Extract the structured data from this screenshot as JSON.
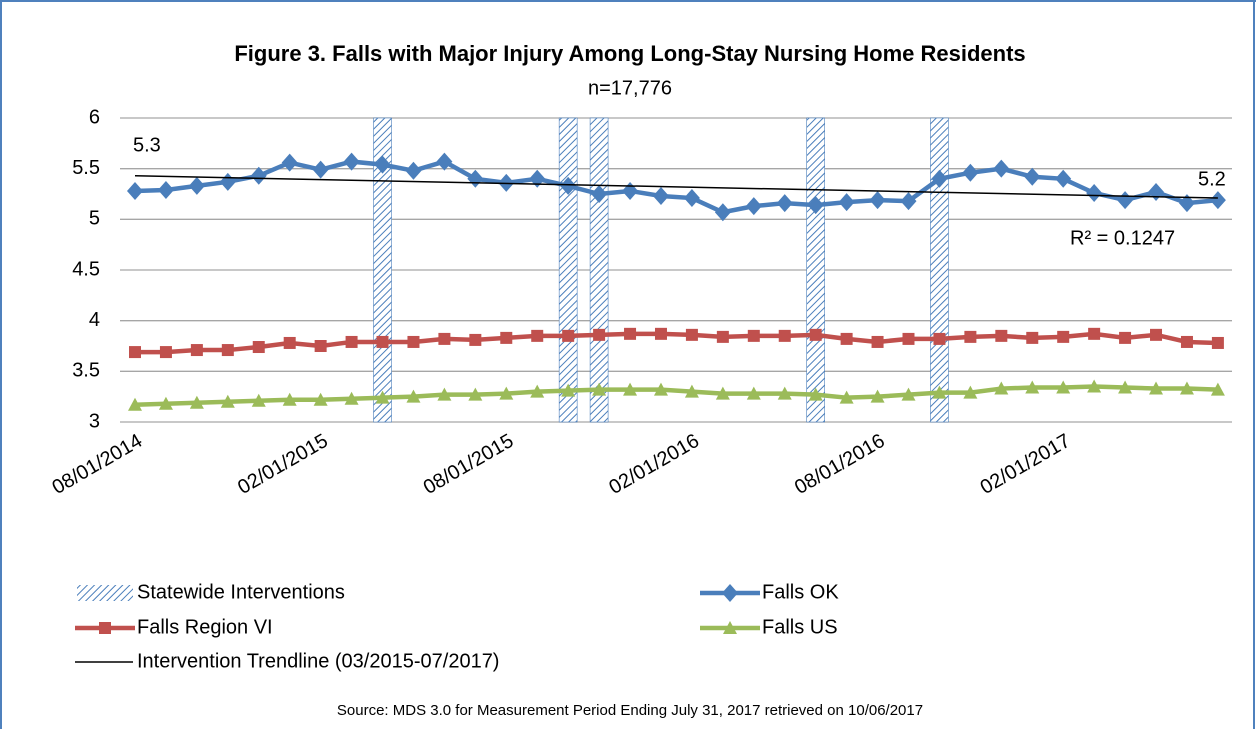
{
  "chart_data": {
    "type": "line",
    "title": "Figure 3.  Falls with Major Injury Among Long-Stay Nursing Home Residents",
    "subtitle": "n=17,776",
    "source": "Source: MDS 3.0 for Measurement Period Ending  July 31, 2017 retrieved on 10/06/2017",
    "categories": [
      "08/01/2014",
      null,
      null,
      null,
      null,
      null,
      "02/01/2015",
      null,
      null,
      null,
      null,
      null,
      "08/01/2015",
      null,
      null,
      null,
      null,
      null,
      "02/01/2016",
      null,
      null,
      null,
      null,
      null,
      "08/01/2016",
      null,
      null,
      null,
      null,
      null,
      "02/01/2017",
      null,
      null,
      null,
      null,
      null
    ],
    "ylim": [
      3,
      6
    ],
    "yticks": [
      3,
      3.5,
      4,
      4.5,
      5,
      5.5,
      6
    ],
    "grid": true,
    "series": [
      {
        "name": "Falls OK",
        "color": "#4a7ebb",
        "marker": "diamond",
        "values": [
          5.28,
          5.29,
          5.33,
          5.37,
          5.43,
          5.56,
          5.49,
          5.57,
          5.54,
          5.48,
          5.57,
          5.4,
          5.36,
          5.4,
          5.33,
          5.25,
          5.28,
          5.23,
          5.21,
          5.07,
          5.13,
          5.16,
          5.14,
          5.17,
          5.19,
          5.18,
          5.4,
          5.46,
          5.5,
          5.42,
          5.4,
          5.26,
          5.19,
          5.27,
          5.16,
          5.19
        ]
      },
      {
        "name": "Falls Region VI",
        "color": "#c0504d",
        "marker": "square",
        "values": [
          3.69,
          3.69,
          3.71,
          3.71,
          3.74,
          3.78,
          3.75,
          3.79,
          3.79,
          3.79,
          3.82,
          3.81,
          3.83,
          3.85,
          3.85,
          3.86,
          3.87,
          3.87,
          3.86,
          3.84,
          3.85,
          3.85,
          3.86,
          3.82,
          3.79,
          3.82,
          3.82,
          3.84,
          3.85,
          3.83,
          3.84,
          3.87,
          3.83,
          3.86,
          3.79,
          3.78
        ]
      },
      {
        "name": "Falls US",
        "color": "#9bbb59",
        "marker": "triangle",
        "values": [
          3.17,
          3.18,
          3.19,
          3.2,
          3.21,
          3.22,
          3.22,
          3.23,
          3.24,
          3.25,
          3.27,
          3.27,
          3.28,
          3.3,
          3.31,
          3.32,
          3.32,
          3.32,
          3.3,
          3.28,
          3.28,
          3.28,
          3.27,
          3.24,
          3.25,
          3.27,
          3.29,
          3.29,
          3.33,
          3.34,
          3.34,
          3.35,
          3.34,
          3.33,
          3.33,
          3.32
        ]
      }
    ],
    "trendline": {
      "name": "Intervention Trendline (03/2015-07/2017)",
      "color": "#000000",
      "values": [
        5.43,
        5.21
      ],
      "r2_label": "R² = 0.1247"
    },
    "interventions": {
      "name": "Statewide Interventions",
      "color": "#4a7ebb",
      "at": [
        8,
        14,
        15,
        22,
        26
      ]
    },
    "annotations": [
      "5.3",
      "5.2"
    ]
  }
}
